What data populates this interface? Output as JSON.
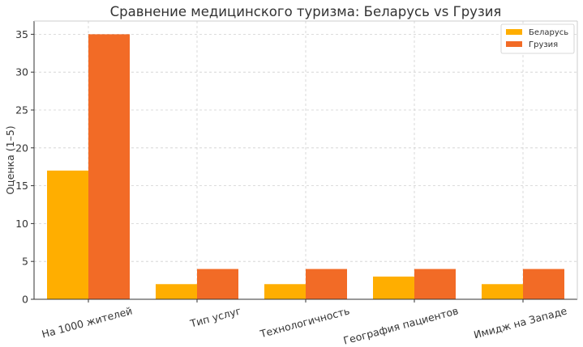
{
  "chart_data": {
    "type": "bar",
    "title": "Сравнение медицинского туризма: Беларусь vs Грузия",
    "xlabel": "",
    "ylabel": "Оценка (1–5)",
    "categories": [
      "На 1000 жителей",
      "Тип услуг",
      "Технологичность",
      "География пациентов",
      "Имидж на Западе"
    ],
    "series": [
      {
        "name": "Беларусь",
        "color": "#FFAE00",
        "values": [
          17,
          2,
          2,
          3,
          2
        ]
      },
      {
        "name": "Грузия",
        "color": "#F26B26",
        "values": [
          35,
          4,
          4,
          4,
          4
        ]
      }
    ],
    "ylim": [
      0,
      36.75
    ],
    "yticks": [
      0,
      5,
      10,
      15,
      20,
      25,
      30,
      35
    ],
    "grid": true,
    "legend_position": "top-right"
  }
}
